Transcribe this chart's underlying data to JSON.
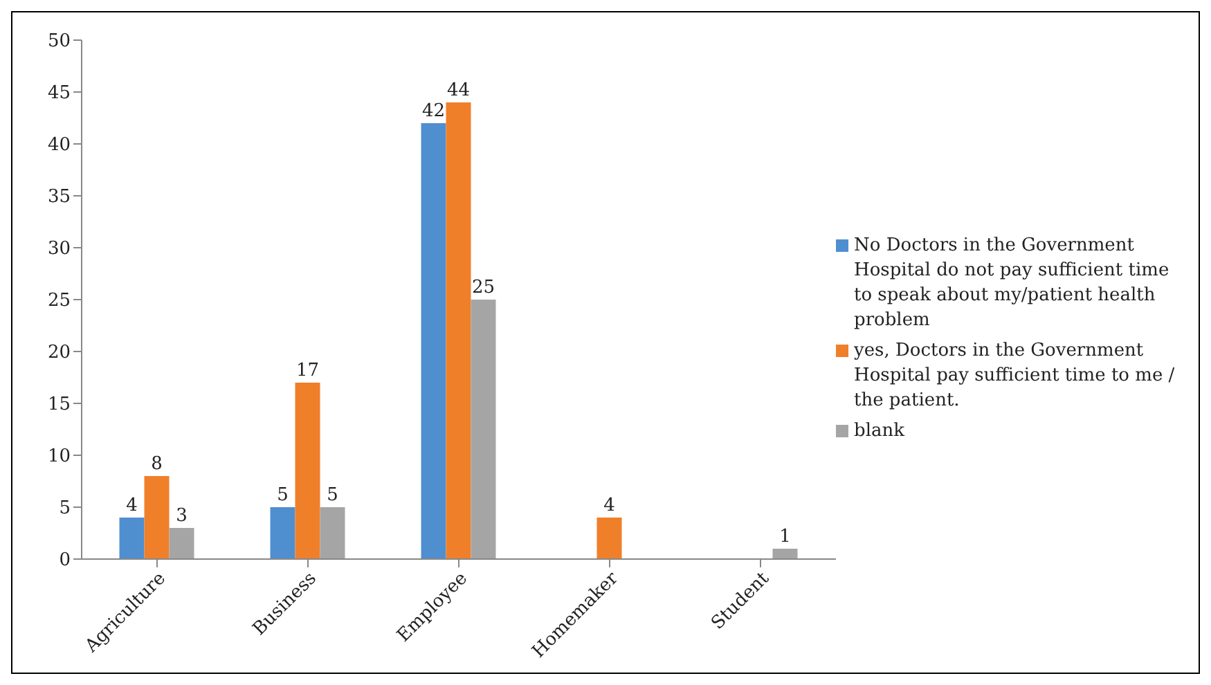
{
  "chart_data": {
    "type": "bar",
    "categories": [
      "Agriculture",
      "Business",
      "Employee",
      "Homemaker",
      "Student"
    ],
    "series": [
      {
        "name": "No Doctors in the Government Hospital do not pay sufficient time to speak about my/patient health problem",
        "color": "#4f8fd0",
        "values": [
          4,
          5,
          42,
          null,
          null
        ]
      },
      {
        "name": "yes, Doctors in the Government Hospital pay sufficient time to me / the patient.",
        "color": "#f07f2a",
        "values": [
          8,
          17,
          44,
          4,
          null
        ]
      },
      {
        "name": "blank",
        "color": "#a5a5a5",
        "values": [
          3,
          5,
          25,
          null,
          1
        ]
      }
    ],
    "ylim": [
      0,
      50
    ],
    "yticks": [
      0,
      5,
      10,
      15,
      20,
      25,
      30,
      35,
      40,
      45,
      50
    ],
    "grid": false,
    "legend": "right",
    "data_labels": true
  }
}
